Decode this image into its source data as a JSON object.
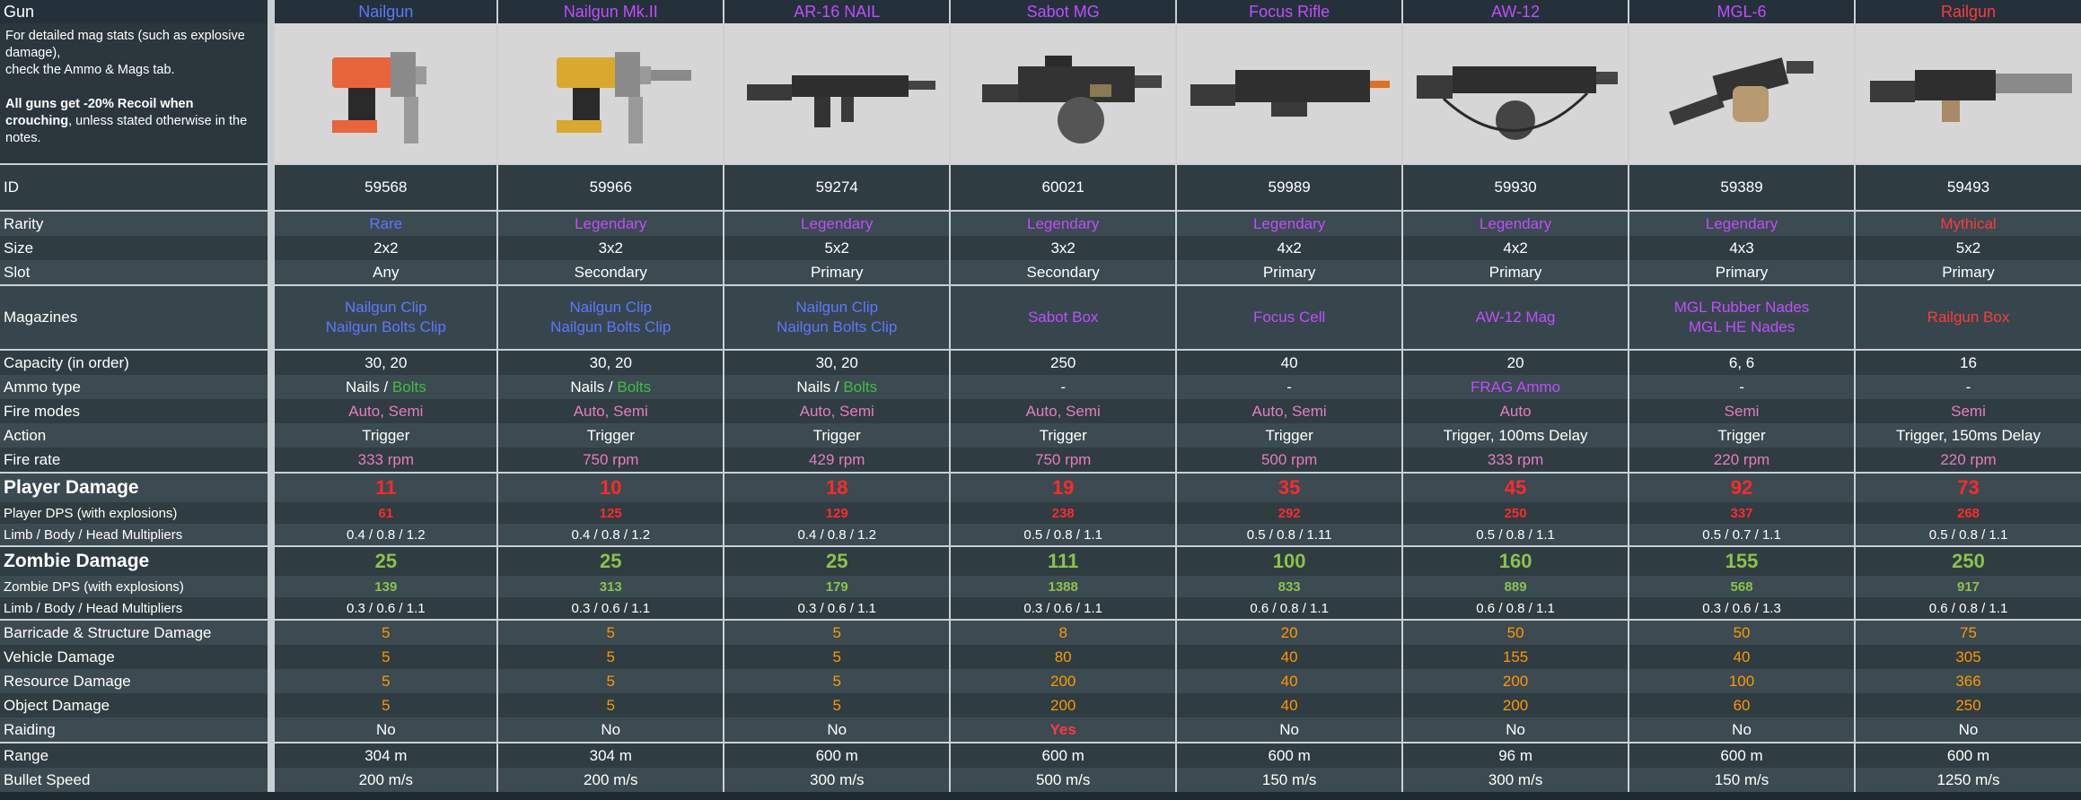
{
  "header": {
    "label": "Gun",
    "guns": [
      {
        "name": "Nailgun",
        "color": "#5b78ff"
      },
      {
        "name": "Nailgun Mk.II",
        "color": "#c04dff"
      },
      {
        "name": "AR-16 NAIL",
        "color": "#c04dff"
      },
      {
        "name": "Sabot MG",
        "color": "#c04dff"
      },
      {
        "name": "Focus Rifle",
        "color": "#c04dff"
      },
      {
        "name": "AW-12",
        "color": "#c04dff"
      },
      {
        "name": "MGL-6",
        "color": "#c04dff"
      },
      {
        "name": "Railgun",
        "color": "#ff3a3a"
      }
    ]
  },
  "note": {
    "line1": "For detailed mag stats (such as explosive damage),",
    "line2": "check the Ammo & Mags tab.",
    "bold": "All guns get -20% Recoil when crouching",
    "rest": ", unless stated otherwise in the notes."
  },
  "colors": {
    "white": "#ffffff",
    "rare": "#5b78ff",
    "legendary": "#c04dff",
    "mythical": "#ff3a3a",
    "pink": "#e87cc0",
    "red": "#ff2a2a",
    "green": "#8bc34a",
    "bolts": "#3fbf3f",
    "orange": "#ff9800",
    "yes": "#ff3a3a"
  },
  "rows": [
    {
      "label": "ID",
      "cls": "bg1 sep",
      "h": 50,
      "color": "white",
      "values": [
        "59568",
        "59966",
        "59274",
        "60021",
        "59989",
        "59930",
        "59389",
        "59493"
      ]
    },
    {
      "label": "Rarity",
      "cls": "bg2 sep",
      "h": 27,
      "colors": [
        "rare",
        "legendary",
        "legendary",
        "legendary",
        "legendary",
        "legendary",
        "legendary",
        "mythical"
      ],
      "values": [
        "Rare",
        "Legendary",
        "Legendary",
        "Legendary",
        "Legendary",
        "Legendary",
        "Legendary",
        "Mythical"
      ]
    },
    {
      "label": "Size",
      "cls": "bg1",
      "h": 27,
      "color": "white",
      "values": [
        "2x2",
        "3x2",
        "5x2",
        "3x2",
        "4x2",
        "4x2",
        "4x3",
        "5x2"
      ]
    },
    {
      "label": "Slot",
      "cls": "bg2",
      "h": 27,
      "color": "white",
      "values": [
        "Any",
        "Secondary",
        "Primary",
        "Secondary",
        "Primary",
        "Primary",
        "Primary",
        "Primary"
      ]
    },
    {
      "label": "Magazines",
      "cls": "bg3 sep",
      "h": 70,
      "multi": true,
      "colors": [
        "rare",
        "rare",
        "rare",
        "legendary",
        "legendary",
        "legendary",
        "legendary",
        "mythical"
      ],
      "values": [
        [
          "Nailgun Clip",
          "Nailgun Bolts Clip"
        ],
        [
          "Nailgun Clip",
          "Nailgun Bolts Clip"
        ],
        [
          "Nailgun Clip",
          "Nailgun Bolts Clip"
        ],
        [
          "Sabot Box"
        ],
        [
          "Focus Cell"
        ],
        [
          "AW-12 Mag"
        ],
        [
          "MGL Rubber Nades",
          "MGL HE Nades"
        ],
        [
          "Railgun Box"
        ]
      ]
    },
    {
      "label": "Capacity (in order)",
      "cls": "bg1 sep",
      "h": 27,
      "color": "white",
      "values": [
        "30, 20",
        "30, 20",
        "30, 20",
        "250",
        "40",
        "20",
        "6, 6",
        "16"
      ]
    },
    {
      "label": "Ammo type",
      "cls": "bg2",
      "h": 27,
      "ammo": true,
      "values": [
        [
          "Nails / ",
          "Bolts"
        ],
        [
          "Nails / ",
          "Bolts"
        ],
        [
          "Nails / ",
          "Bolts"
        ],
        [
          "-"
        ],
        [
          "-"
        ],
        [
          "FRAG Ammo"
        ],
        [
          "-"
        ],
        [
          "-"
        ]
      ]
    },
    {
      "label": "Fire modes",
      "cls": "bg1",
      "h": 27,
      "color": "pink",
      "values": [
        "Auto, Semi",
        "Auto, Semi",
        "Auto, Semi",
        "Auto, Semi",
        "Auto, Semi",
        "Auto",
        "Semi",
        "Semi"
      ]
    },
    {
      "label": "Action",
      "cls": "bg2",
      "h": 27,
      "color": "white",
      "values": [
        "Trigger",
        "Trigger",
        "Trigger",
        "Trigger",
        "Trigger",
        "Trigger, 100ms Delay",
        "Trigger",
        "Trigger, 150ms Delay"
      ]
    },
    {
      "label": "Fire rate",
      "cls": "bg1",
      "h": 27,
      "color": "pink",
      "values": [
        "333 rpm",
        "750 rpm",
        "429 rpm",
        "750 rpm",
        "500 rpm",
        "333 rpm",
        "220 rpm",
        "220 rpm"
      ]
    },
    {
      "label": "Player Damage",
      "cls": "bg2 sep big",
      "h": 32,
      "color": "red",
      "values": [
        "11",
        "10",
        "18",
        "19",
        "35",
        "45",
        "92",
        "73"
      ]
    },
    {
      "label": "Player DPS (with explosions)",
      "cls": "bg1 small",
      "h": 24,
      "color": "red",
      "bold": true,
      "values": [
        "61",
        "125",
        "129",
        "238",
        "292",
        "250",
        "337",
        "268"
      ]
    },
    {
      "label": "Limb / Body / Head Multipliers",
      "cls": "bg2 small",
      "h": 24,
      "color": "white",
      "values": [
        "0.4 / 0.8 / 1.2",
        "0.4 / 0.8 / 1.2",
        "0.4 / 0.8 / 1.2",
        "0.5 / 0.8 / 1.1",
        "0.5 / 0.8 / 1.11",
        "0.5 / 0.8 / 1.1",
        "0.5 / 0.7 / 1.1",
        "0.5 / 0.8 / 1.1"
      ]
    },
    {
      "label": "Zombie Damage",
      "cls": "bg1 sep big",
      "h": 32,
      "color": "green",
      "values": [
        "25",
        "25",
        "25",
        "111",
        "100",
        "160",
        "155",
        "250"
      ]
    },
    {
      "label": "Zombie DPS (with explosions)",
      "cls": "bg2 small",
      "h": 24,
      "color": "green",
      "bold": true,
      "values": [
        "139",
        "313",
        "179",
        "1388",
        "833",
        "889",
        "568",
        "917"
      ]
    },
    {
      "label": "Limb / Body / Head Multipliers",
      "cls": "bg1 small",
      "h": 24,
      "color": "white",
      "values": [
        "0.3 / 0.6 / 1.1",
        "0.3 / 0.6 / 1.1",
        "0.3 / 0.6 / 1.1",
        "0.3 / 0.6 / 1.1",
        "0.6 / 0.8 / 1.1",
        "0.6 / 0.8 / 1.1",
        "0.3 / 0.6 / 1.3",
        "0.6 / 0.8 / 1.1"
      ]
    },
    {
      "label": "Barricade & Structure Damage",
      "cls": "bg2 sep",
      "h": 27,
      "color": "orange",
      "values": [
        "5",
        "5",
        "5",
        "8",
        "20",
        "50",
        "50",
        "75"
      ]
    },
    {
      "label": "Vehicle Damage",
      "cls": "bg1",
      "h": 27,
      "color": "orange",
      "values": [
        "5",
        "5",
        "5",
        "80",
        "40",
        "155",
        "40",
        "305"
      ]
    },
    {
      "label": "Resource Damage",
      "cls": "bg2",
      "h": 27,
      "color": "orange",
      "values": [
        "5",
        "5",
        "5",
        "200",
        "40",
        "200",
        "100",
        "366"
      ]
    },
    {
      "label": "Object Damage",
      "cls": "bg1",
      "h": 27,
      "color": "orange",
      "values": [
        "5",
        "5",
        "5",
        "200",
        "40",
        "200",
        "60",
        "250"
      ]
    },
    {
      "label": "Raiding",
      "cls": "bg2",
      "h": 27,
      "colors": [
        "white",
        "white",
        "white",
        "yes",
        "white",
        "white",
        "white",
        "white"
      ],
      "boldIdx": [
        3
      ],
      "values": [
        "No",
        "No",
        "No",
        "Yes",
        "No",
        "No",
        "No",
        "No"
      ]
    },
    {
      "label": "Range",
      "cls": "bg1 sep",
      "h": 27,
      "color": "white",
      "values": [
        "304 m",
        "304 m",
        "600 m",
        "600 m",
        "600 m",
        "96 m",
        "600 m",
        "600 m"
      ]
    },
    {
      "label": "Bullet Speed",
      "cls": "bg2",
      "h": 27,
      "color": "white",
      "values": [
        "200 m/s",
        "200 m/s",
        "300 m/s",
        "500 m/s",
        "150 m/s",
        "300 m/s",
        "150 m/s",
        "1250 m/s"
      ]
    }
  ]
}
